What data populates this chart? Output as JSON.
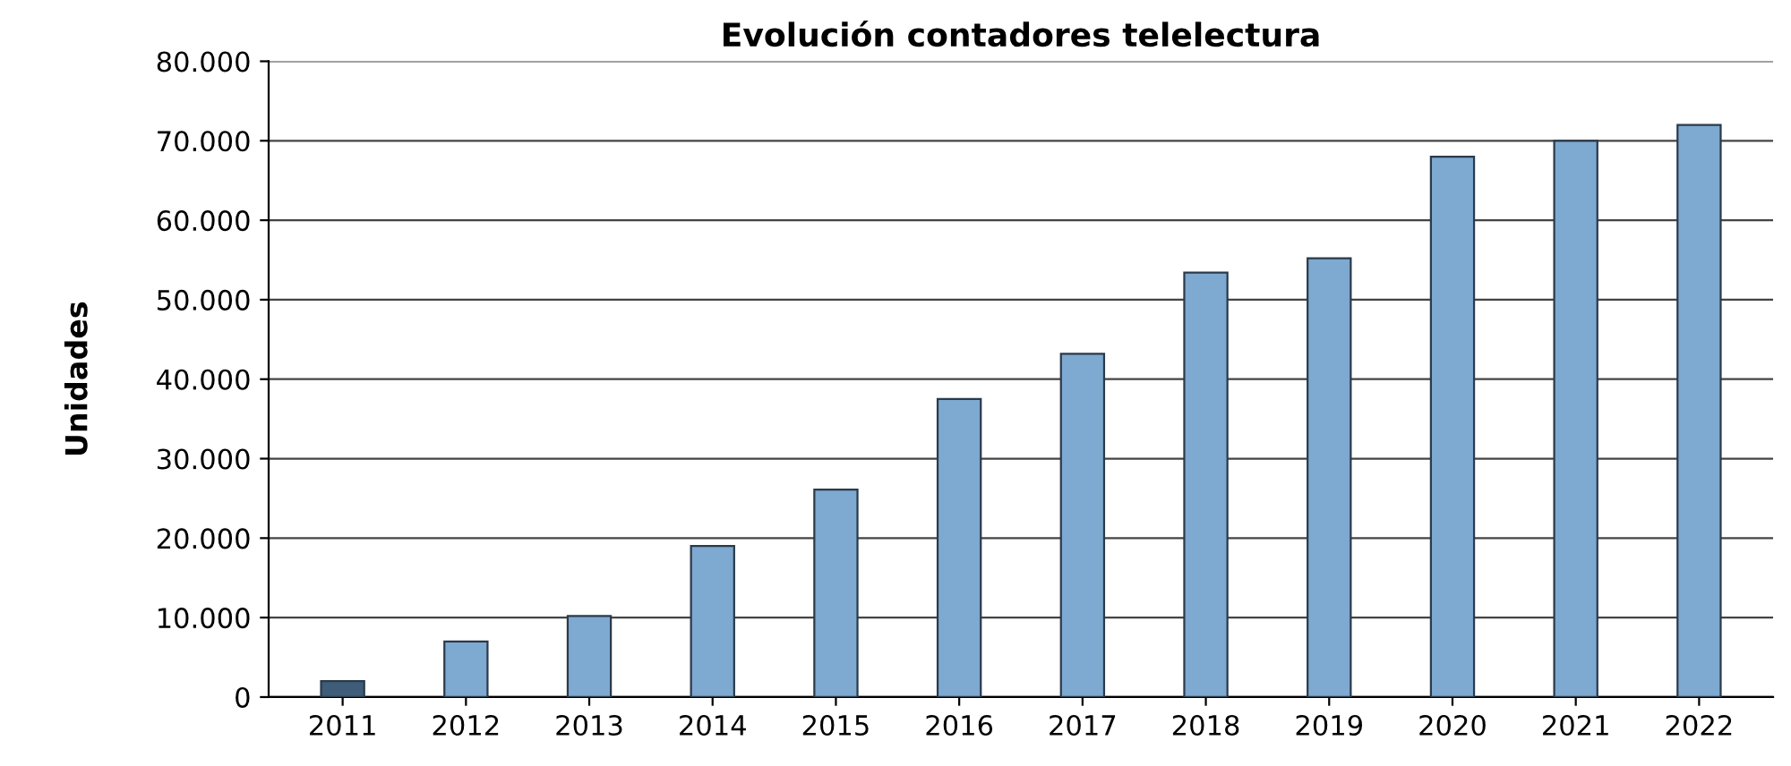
{
  "chart_data": {
    "type": "bar",
    "title": "Evolución contadores telelectura",
    "ylabel": "Unidades",
    "categories": [
      "2011",
      "2012",
      "2013",
      "2014",
      "2015",
      "2016",
      "2017",
      "2018",
      "2019",
      "2020",
      "2021",
      "2022"
    ],
    "values": [
      2000,
      7000,
      10200,
      19000,
      26100,
      37500,
      43200,
      53400,
      55200,
      68000,
      70000,
      72000
    ],
    "colors": [
      "#3f5d78",
      "#7ea9d0",
      "#7ea9d0",
      "#7ea9d0",
      "#7ea9d0",
      "#7ea9d0",
      "#7ea9d0",
      "#7ea9d0",
      "#7ea9d0",
      "#7ea9d0",
      "#7ea9d0",
      "#7ea9d0"
    ],
    "ylim": [
      0,
      80000
    ],
    "yticks": [
      {
        "value": 0,
        "label": "0"
      },
      {
        "value": 10000,
        "label": "10.000"
      },
      {
        "value": 20000,
        "label": "20.000"
      },
      {
        "value": 30000,
        "label": "30.000"
      },
      {
        "value": 40000,
        "label": "40.000"
      },
      {
        "value": 50000,
        "label": "50.000"
      },
      {
        "value": 60000,
        "label": "60.000"
      },
      {
        "value": 70000,
        "label": "70.000"
      },
      {
        "value": 80000,
        "label": "80.000"
      }
    ],
    "grid": "y"
  }
}
